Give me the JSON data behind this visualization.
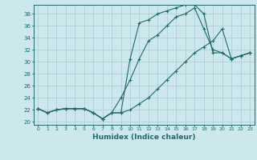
{
  "title": "",
  "xlabel": "Humidex (Indice chaleur)",
  "xlim": [
    -0.5,
    23.5
  ],
  "ylim": [
    19.5,
    39.5
  ],
  "xticks": [
    0,
    1,
    2,
    3,
    4,
    5,
    6,
    7,
    8,
    9,
    10,
    11,
    12,
    13,
    14,
    15,
    16,
    17,
    18,
    19,
    20,
    21,
    22,
    23
  ],
  "yticks": [
    20,
    22,
    24,
    26,
    28,
    30,
    32,
    34,
    36,
    38
  ],
  "background_color": "#cce8ec",
  "line_color": "#1e6b6b",
  "grid_color": "#aaccd4",
  "line1_x": [
    0,
    1,
    2,
    3,
    4,
    5,
    6,
    7,
    8,
    9,
    10,
    11,
    12,
    13,
    14,
    15,
    16,
    17,
    18,
    19,
    20,
    21,
    22,
    23
  ],
  "line1_y": [
    22.2,
    21.5,
    22.0,
    22.2,
    22.2,
    22.2,
    21.5,
    20.5,
    21.5,
    21.5,
    30.5,
    36.5,
    37.0,
    38.0,
    38.5,
    39.0,
    39.5,
    39.5,
    38.0,
    31.5,
    31.5,
    30.5,
    31.0,
    31.5
  ],
  "line2_x": [
    0,
    1,
    2,
    3,
    4,
    5,
    6,
    7,
    8,
    9,
    10,
    11,
    12,
    13,
    14,
    15,
    16,
    17,
    18,
    19,
    20,
    21,
    22,
    23
  ],
  "line2_y": [
    22.2,
    21.5,
    22.0,
    22.2,
    22.2,
    22.2,
    21.5,
    20.5,
    21.5,
    24.0,
    27.0,
    30.5,
    33.5,
    34.5,
    36.0,
    37.5,
    38.0,
    39.0,
    35.5,
    32.0,
    31.5,
    30.5,
    31.0,
    31.5
  ],
  "line3_x": [
    0,
    1,
    2,
    3,
    4,
    5,
    6,
    7,
    8,
    9,
    10,
    11,
    12,
    13,
    14,
    15,
    16,
    17,
    18,
    19,
    20,
    21,
    22,
    23
  ],
  "line3_y": [
    22.2,
    21.5,
    22.0,
    22.2,
    22.2,
    22.2,
    21.5,
    20.5,
    21.5,
    21.5,
    22.0,
    23.0,
    24.0,
    25.5,
    27.0,
    28.5,
    30.0,
    31.5,
    32.5,
    33.5,
    35.5,
    30.5,
    31.0,
    31.5
  ]
}
